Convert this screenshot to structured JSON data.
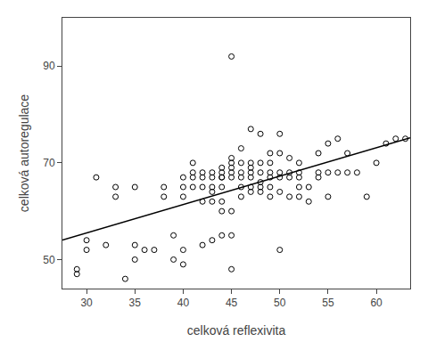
{
  "chart_data": {
    "type": "scatter",
    "xlabel": "celková reflexivita",
    "ylabel": "celková autoregulace",
    "xlim": [
      27.5,
      63.5
    ],
    "ylim": [
      44,
      100
    ],
    "xticks": [
      30,
      35,
      40,
      45,
      50,
      55,
      60
    ],
    "yticks": [
      50,
      70,
      90
    ],
    "grid": false,
    "series": [
      {
        "type": "scatter",
        "color": "black",
        "marker": "open circle",
        "x": [
          29,
          29,
          30,
          30,
          31,
          32,
          33,
          33,
          34,
          35,
          35,
          35,
          36,
          37,
          38,
          38,
          39,
          39,
          40,
          40,
          40,
          40,
          40,
          41,
          41,
          41,
          41,
          42,
          42,
          42,
          42,
          42,
          43,
          43,
          43,
          43,
          43,
          43,
          44,
          44,
          44,
          44,
          44,
          44,
          44,
          44,
          45,
          45,
          45,
          45,
          45,
          45,
          45,
          45,
          45,
          46,
          46,
          46,
          46,
          46,
          46,
          47,
          47,
          47,
          47,
          47,
          47,
          47,
          48,
          48,
          48,
          48,
          48,
          48,
          49,
          49,
          49,
          49,
          49,
          49,
          50,
          50,
          50,
          50,
          50,
          50,
          51,
          51,
          51,
          51,
          52,
          52,
          52,
          52,
          52,
          53,
          53,
          54,
          54,
          54,
          55,
          55,
          55,
          56,
          56,
          57,
          57,
          58,
          59,
          60,
          61,
          62,
          63
        ],
        "values": [
          47,
          48,
          52,
          54,
          67,
          53,
          63,
          65,
          46,
          50,
          53,
          65,
          52,
          52,
          63,
          65,
          50,
          55,
          49,
          52,
          63,
          65,
          67,
          65,
          67,
          68,
          70,
          53,
          62,
          65,
          67,
          68,
          54,
          62,
          64,
          65,
          67,
          68,
          55,
          60,
          62,
          65,
          67,
          67,
          68,
          69,
          48,
          55,
          60,
          67,
          68,
          69,
          70,
          71,
          92,
          63,
          65,
          67,
          68,
          70,
          73,
          64,
          65,
          67,
          68,
          69,
          70,
          77,
          64,
          65,
          66,
          68,
          70,
          76,
          63,
          65,
          67,
          68,
          70,
          72,
          52,
          64,
          67,
          68,
          72,
          76,
          63,
          67,
          68,
          71,
          63,
          65,
          67,
          68,
          70,
          62,
          65,
          67,
          68,
          72,
          63,
          68,
          74,
          68,
          75,
          68,
          72,
          68,
          63,
          70,
          74,
          75,
          75
        ]
      },
      {
        "type": "line",
        "color": "black",
        "line_style": "solid",
        "x": [
          27.5,
          63.5
        ],
        "values": [
          54.0521,
          75.1926
        ]
      }
    ]
  }
}
